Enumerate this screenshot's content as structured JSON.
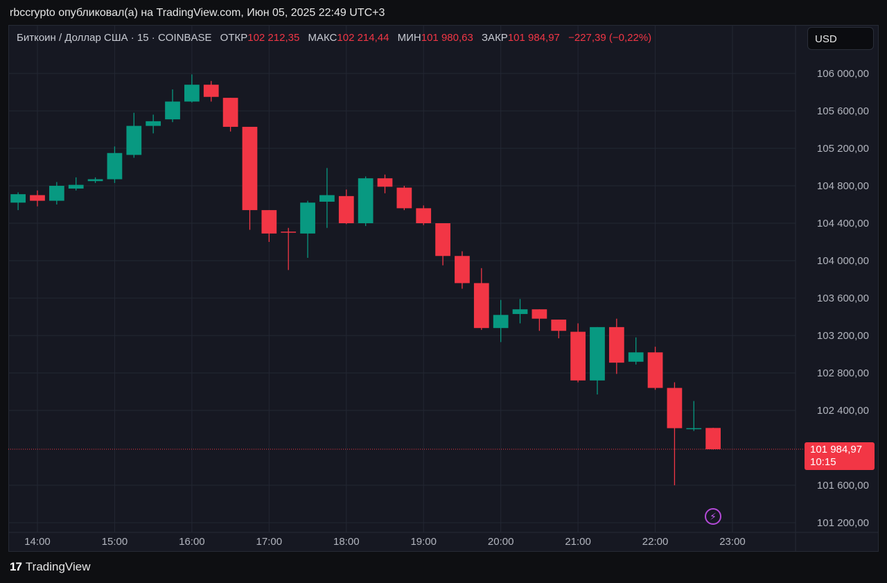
{
  "caption": "rbccrypto опубликовал(а) на TradingView.com, Июн 05, 2025 22:49 UTC+3",
  "legend": {
    "symbol": "Биткоин / Доллар США · 15 · COINBASE",
    "open_label": "ОТКР",
    "open": "102 212,35",
    "high_label": "МАКС",
    "high": "102 214,44",
    "low_label": "МИН",
    "low": "101 980,63",
    "close_label": "ЗАКР",
    "close": "101 984,97",
    "change": "−227,39 (−0,22%)"
  },
  "currency_button": "USD",
  "price_tag": {
    "price": "101 984,97",
    "countdown": "10:15"
  },
  "footer": {
    "logo": "17",
    "brand": "TradingView"
  },
  "colors": {
    "up": "#089981",
    "down": "#f23645",
    "grid": "#232733",
    "text": "#b2b5be"
  },
  "chart_data": {
    "type": "candlestick",
    "ylim": [
      101200,
      106400
    ],
    "y_ticks": [
      106000,
      105600,
      105200,
      104800,
      104400,
      104000,
      103600,
      103200,
      102800,
      102400,
      101600,
      101200
    ],
    "y_tick_labels": [
      "106 000,00",
      "105 600,00",
      "105 200,00",
      "104 800,00",
      "104 400,00",
      "104 000,00",
      "103 600,00",
      "103 200,00",
      "102 800,00",
      "102 400,00",
      "101 600,00",
      "101 200,00"
    ],
    "x_ticks": [
      "14:00",
      "15:00",
      "16:00",
      "17:00",
      "18:00",
      "19:00",
      "20:00",
      "21:00",
      "22:00",
      "23:00"
    ],
    "x_tick_times": [
      "14:00",
      "15:00",
      "16:00",
      "17:00",
      "18:00",
      "19:00",
      "20:00",
      "21:00",
      "22:00",
      "23:00"
    ],
    "interval_minutes": 15,
    "current_price": 101984.97,
    "candles": [
      {
        "t": "13:45",
        "o": 104620,
        "h": 104730,
        "l": 104540,
        "c": 104710
      },
      {
        "t": "14:00",
        "o": 104700,
        "h": 104750,
        "l": 104580,
        "c": 104640
      },
      {
        "t": "14:15",
        "o": 104640,
        "h": 104840,
        "l": 104600,
        "c": 104800
      },
      {
        "t": "14:30",
        "o": 104770,
        "h": 104890,
        "l": 104750,
        "c": 104810
      },
      {
        "t": "14:45",
        "o": 104850,
        "h": 104890,
        "l": 104830,
        "c": 104870
      },
      {
        "t": "15:00",
        "o": 104870,
        "h": 105220,
        "l": 104830,
        "c": 105150
      },
      {
        "t": "15:15",
        "o": 105130,
        "h": 105580,
        "l": 105100,
        "c": 105440
      },
      {
        "t": "15:30",
        "o": 105440,
        "h": 105560,
        "l": 105360,
        "c": 105490
      },
      {
        "t": "15:45",
        "o": 105510,
        "h": 105830,
        "l": 105480,
        "c": 105700
      },
      {
        "t": "16:00",
        "o": 105700,
        "h": 105990,
        "l": 105690,
        "c": 105880
      },
      {
        "t": "16:15",
        "o": 105880,
        "h": 105920,
        "l": 105700,
        "c": 105750
      },
      {
        "t": "16:30",
        "o": 105740,
        "h": 105740,
        "l": 105380,
        "c": 105430
      },
      {
        "t": "16:45",
        "o": 105430,
        "h": 105430,
        "l": 104330,
        "c": 104540
      },
      {
        "t": "17:00",
        "o": 104540,
        "h": 104540,
        "l": 104200,
        "c": 104290
      },
      {
        "t": "17:15",
        "o": 104310,
        "h": 104350,
        "l": 103900,
        "c": 104300
      },
      {
        "t": "17:30",
        "o": 104290,
        "h": 104640,
        "l": 104030,
        "c": 104620
      },
      {
        "t": "17:45",
        "o": 104630,
        "h": 104990,
        "l": 104350,
        "c": 104700
      },
      {
        "t": "18:00",
        "o": 104690,
        "h": 104760,
        "l": 104390,
        "c": 104400
      },
      {
        "t": "18:15",
        "o": 104400,
        "h": 104900,
        "l": 104370,
        "c": 104880
      },
      {
        "t": "18:30",
        "o": 104880,
        "h": 104920,
        "l": 104720,
        "c": 104790
      },
      {
        "t": "18:45",
        "o": 104780,
        "h": 104800,
        "l": 104540,
        "c": 104560
      },
      {
        "t": "19:00",
        "o": 104560,
        "h": 104590,
        "l": 104380,
        "c": 104400
      },
      {
        "t": "19:15",
        "o": 104400,
        "h": 104400,
        "l": 103950,
        "c": 104050
      },
      {
        "t": "19:30",
        "o": 104050,
        "h": 104100,
        "l": 103700,
        "c": 103760
      },
      {
        "t": "19:45",
        "o": 103760,
        "h": 103920,
        "l": 103260,
        "c": 103280
      },
      {
        "t": "20:00",
        "o": 103280,
        "h": 103580,
        "l": 103130,
        "c": 103420
      },
      {
        "t": "20:15",
        "o": 103430,
        "h": 103590,
        "l": 103330,
        "c": 103480
      },
      {
        "t": "20:30",
        "o": 103480,
        "h": 103480,
        "l": 103250,
        "c": 103380
      },
      {
        "t": "20:45",
        "o": 103370,
        "h": 103370,
        "l": 103170,
        "c": 103250
      },
      {
        "t": "21:00",
        "o": 103240,
        "h": 103330,
        "l": 102700,
        "c": 102720
      },
      {
        "t": "21:15",
        "o": 102720,
        "h": 103290,
        "l": 102570,
        "c": 103290
      },
      {
        "t": "21:30",
        "o": 103290,
        "h": 103380,
        "l": 102790,
        "c": 102910
      },
      {
        "t": "21:45",
        "o": 102920,
        "h": 103180,
        "l": 102890,
        "c": 103020
      },
      {
        "t": "22:00",
        "o": 103020,
        "h": 103080,
        "l": 102620,
        "c": 102640
      },
      {
        "t": "22:15",
        "o": 102640,
        "h": 102700,
        "l": 101600,
        "c": 102210
      },
      {
        "t": "22:30",
        "o": 102210,
        "h": 102500,
        "l": 102180,
        "c": 102210
      },
      {
        "t": "22:45",
        "o": 102212.35,
        "h": 102214.44,
        "l": 101980.63,
        "c": 101984.97
      }
    ]
  }
}
